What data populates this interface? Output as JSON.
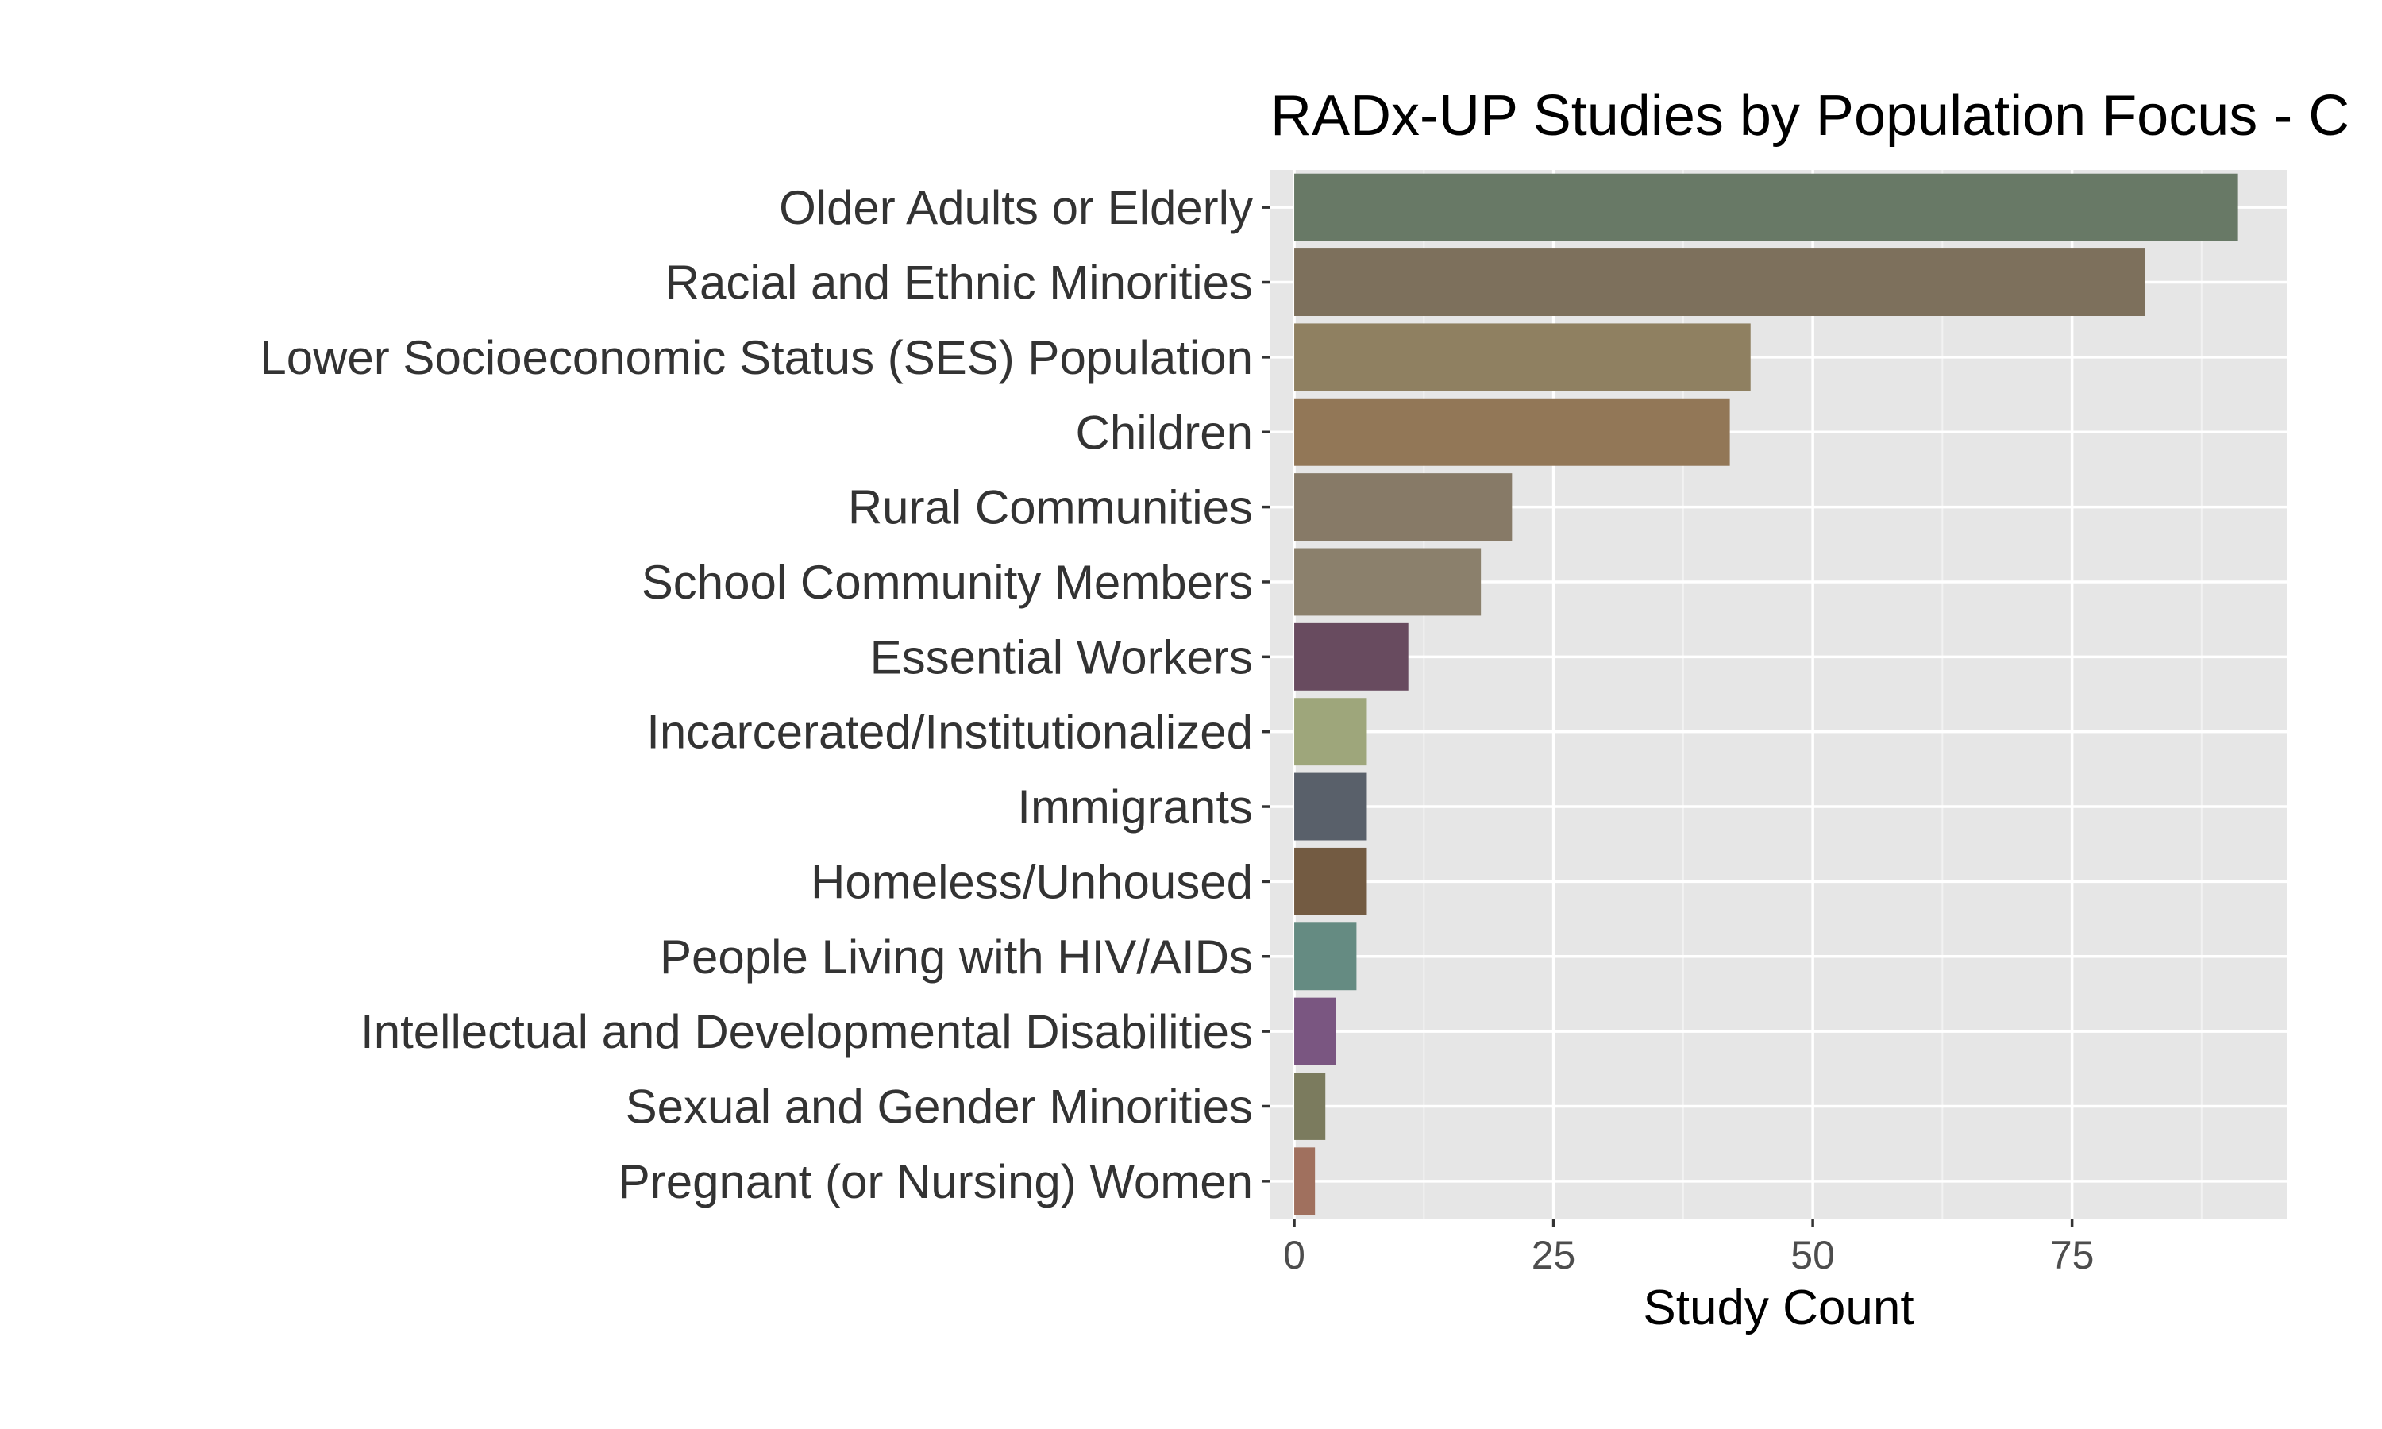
{
  "chart_data": {
    "type": "bar",
    "orientation": "horizontal",
    "title": "RADx-UP Studies by Population Focus - C",
    "xlabel": "Study Count",
    "ylabel": "",
    "xlim": [
      -2.3,
      95.7
    ],
    "xticks": [
      0,
      25,
      50,
      75
    ],
    "grid": true,
    "categories": [
      "Older Adults or Elderly",
      "Racial and Ethnic Minorities",
      "Lower Socioeconomic Status (SES) Population",
      "Children",
      "Rural Communities",
      "School Community Members",
      "Essential Workers",
      "Incarcerated/Institutionalized",
      "Immigrants",
      "Homeless/Unhoused",
      "People Living with HIV/AIDs",
      "Intellectual and Developmental Disabilities",
      "Sexual and Gender Minorities",
      "Pregnant (or Nursing) Women"
    ],
    "values": [
      91,
      82,
      44,
      42,
      21,
      18,
      11,
      7,
      7,
      7,
      6,
      4,
      3,
      2
    ],
    "colors": [
      "#687966",
      "#7d705c",
      "#8f8061",
      "#927757",
      "#877a67",
      "#8b806c",
      "#684b5f",
      "#9ea67b",
      "#59606a",
      "#735b42",
      "#658b82",
      "#7a5681",
      "#7b7b5e",
      "#a0705e"
    ]
  }
}
